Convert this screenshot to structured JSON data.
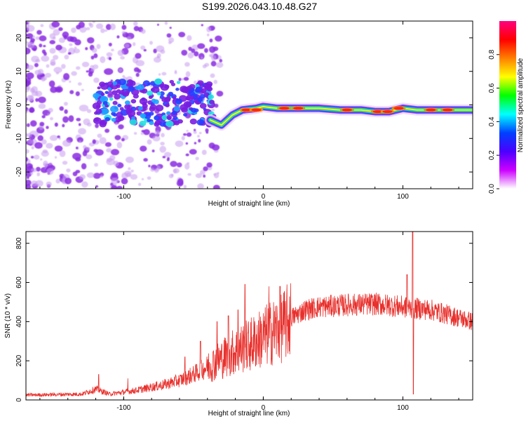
{
  "title": "S199.2026.043.10.48.G27",
  "colors": {
    "snr_line": "#e8302c",
    "blob_outer": "#9933ff",
    "ridge_hot": "#ff2020"
  },
  "chart_data": [
    {
      "type": "heatmap",
      "name": "spectrogram",
      "xlabel": "Height of straight line (km)",
      "ylabel": "Frequency (Hz)",
      "xlim": [
        -170,
        150
      ],
      "ylim": [
        -25,
        25
      ],
      "xticks": [
        -100,
        0,
        100
      ],
      "yticks": [
        -20,
        -10,
        0,
        10,
        20
      ],
      "grid": false,
      "colorbar": {
        "label": "Normalized spectral amplitude",
        "range": [
          0,
          1
        ],
        "ticks": [
          "0.0",
          "0.2",
          "0.4",
          "0.6",
          "0.8"
        ],
        "tick_values": [
          0,
          0.2,
          0.4,
          0.6,
          0.8
        ],
        "colors": [
          "#ffffff",
          "#cc00ff",
          "#4b00ff",
          "#0040ff",
          "#00ffff",
          "#00ff00",
          "#ffff00",
          "#ff8000",
          "#ff0000",
          "#ff0080"
        ]
      },
      "ridge": [
        {
          "x": -38,
          "f": -4.5
        },
        {
          "x": -30,
          "f": -6
        },
        {
          "x": -22,
          "f": -3
        },
        {
          "x": -15,
          "f": -1.5
        },
        {
          "x": -5,
          "f": -1
        },
        {
          "x": 0,
          "f": -0.5
        },
        {
          "x": 10,
          "f": -1
        },
        {
          "x": 20,
          "f": -1
        },
        {
          "x": 40,
          "f": -1
        },
        {
          "x": 55,
          "f": -1.5
        },
        {
          "x": 70,
          "f": -1.5
        },
        {
          "x": 80,
          "f": -2
        },
        {
          "x": 90,
          "f": -2
        },
        {
          "x": 100,
          "f": -1
        },
        {
          "x": 110,
          "f": -1.5
        },
        {
          "x": 130,
          "f": -1.5
        },
        {
          "x": 150,
          "f": -1.5
        }
      ],
      "ridge_hotspots": [
        {
          "x": -12,
          "f": -1.5
        },
        {
          "x": -5,
          "f": -1.5
        },
        {
          "x": 15,
          "f": -1
        },
        {
          "x": 25,
          "f": -1
        },
        {
          "x": 60,
          "f": -1.5
        },
        {
          "x": 82,
          "f": -2
        },
        {
          "x": 89,
          "f": -2
        },
        {
          "x": 97,
          "f": -1
        },
        {
          "x": 120,
          "f": -1.5
        },
        {
          "x": 132,
          "f": -1.5
        }
      ]
    },
    {
      "type": "line",
      "name": "snr",
      "xlabel": "Height of straight line (km)",
      "ylabel": "SNR (10 * v/v)",
      "xlim": [
        -170,
        150
      ],
      "ylim": [
        0,
        860
      ],
      "xticks": [
        -100,
        0,
        100
      ],
      "yticks": [
        0,
        200,
        400,
        600,
        800
      ],
      "grid": false,
      "envelope": [
        {
          "x": -170,
          "y": 25
        },
        {
          "x": -130,
          "y": 30
        },
        {
          "x": -120,
          "y": 55
        },
        {
          "x": -110,
          "y": 30
        },
        {
          "x": -90,
          "y": 50
        },
        {
          "x": -70,
          "y": 80
        },
        {
          "x": -60,
          "y": 100
        },
        {
          "x": -50,
          "y": 130
        },
        {
          "x": -40,
          "y": 170
        },
        {
          "x": -30,
          "y": 210
        },
        {
          "x": -20,
          "y": 250
        },
        {
          "x": -10,
          "y": 280
        },
        {
          "x": 0,
          "y": 320
        },
        {
          "x": 5,
          "y": 340
        },
        {
          "x": 10,
          "y": 360
        },
        {
          "x": 15,
          "y": 380
        },
        {
          "x": 20,
          "y": 420
        },
        {
          "x": 30,
          "y": 460
        },
        {
          "x": 40,
          "y": 475
        },
        {
          "x": 60,
          "y": 485
        },
        {
          "x": 80,
          "y": 490
        },
        {
          "x": 95,
          "y": 480
        },
        {
          "x": 105,
          "y": 470
        },
        {
          "x": 120,
          "y": 460
        },
        {
          "x": 130,
          "y": 440
        },
        {
          "x": 140,
          "y": 420
        },
        {
          "x": 150,
          "y": 400
        }
      ],
      "spikes": [
        {
          "x": -118,
          "y": 130
        },
        {
          "x": -97,
          "y": 110
        },
        {
          "x": -56,
          "y": 220
        },
        {
          "x": -45,
          "y": 300
        },
        {
          "x": -33,
          "y": 400
        },
        {
          "x": -25,
          "y": 430
        },
        {
          "x": -18,
          "y": 460
        },
        {
          "x": -13,
          "y": 590
        },
        {
          "x": 4,
          "y": 580
        },
        {
          "x": 12,
          "y": 580
        },
        {
          "x": 103,
          "y": 640
        },
        {
          "x": 107,
          "y": 860
        },
        {
          "x": 107.5,
          "y": 30
        }
      ]
    }
  ]
}
